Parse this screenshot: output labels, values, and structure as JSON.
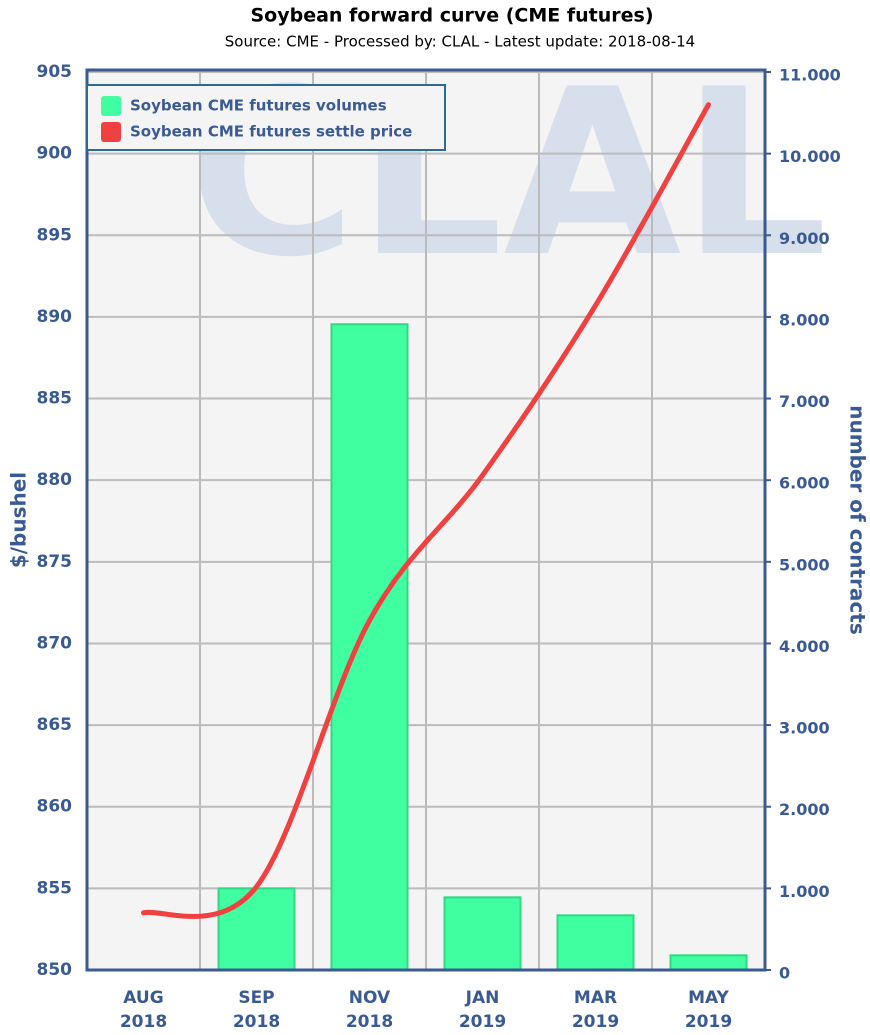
{
  "chart_data": {
    "type": "bar-line",
    "title": "Soybean forward curve (CME futures)",
    "subtitle": "Source: CME - Processed by: CLAL - Latest update: 2018-08-14",
    "watermark": "CLAL",
    "ylabel": "$/bushel",
    "y2label": "number of contracts",
    "categories": [
      "AUG 2018",
      "SEP 2018",
      "NOV 2018",
      "JAN 2019",
      "MAR 2019",
      "MAY 2019"
    ],
    "series": [
      {
        "name": "Soybean CME futures volumes",
        "type": "bar",
        "axis": "y2",
        "color": "#40ffa0",
        "values": [
          0,
          1000,
          7910,
          890,
          670,
          180
        ]
      },
      {
        "name": "Soybean CME futures settle price",
        "type": "line",
        "axis": "y",
        "color": "#f04040",
        "values": [
          853.5,
          855.1,
          871.4,
          880.3,
          890.7,
          903.0
        ]
      }
    ],
    "ylim": [
      850,
      905
    ],
    "yticks": [
      850,
      855,
      860,
      865,
      870,
      875,
      880,
      885,
      890,
      895,
      900,
      905
    ],
    "y2lim": [
      0,
      11000
    ],
    "y2ticks": [
      0,
      {
        "value": 1000,
        "label": "1.000"
      },
      {
        "value": 2000,
        "label": "2.000"
      },
      {
        "value": 3000,
        "label": "3.000"
      },
      {
        "value": 4000,
        "label": "4.000"
      },
      {
        "value": 5000,
        "label": "5.000"
      },
      {
        "value": 6000,
        "label": "6.000"
      },
      {
        "value": 7000,
        "label": "7.000"
      },
      {
        "value": 8000,
        "label": "8.000"
      },
      {
        "value": 9000,
        "label": "9.000"
      },
      {
        "value": 10000,
        "label": "10.000"
      },
      {
        "value": 11000,
        "label": "11.000"
      }
    ],
    "grid": true,
    "legend": "top-left"
  }
}
